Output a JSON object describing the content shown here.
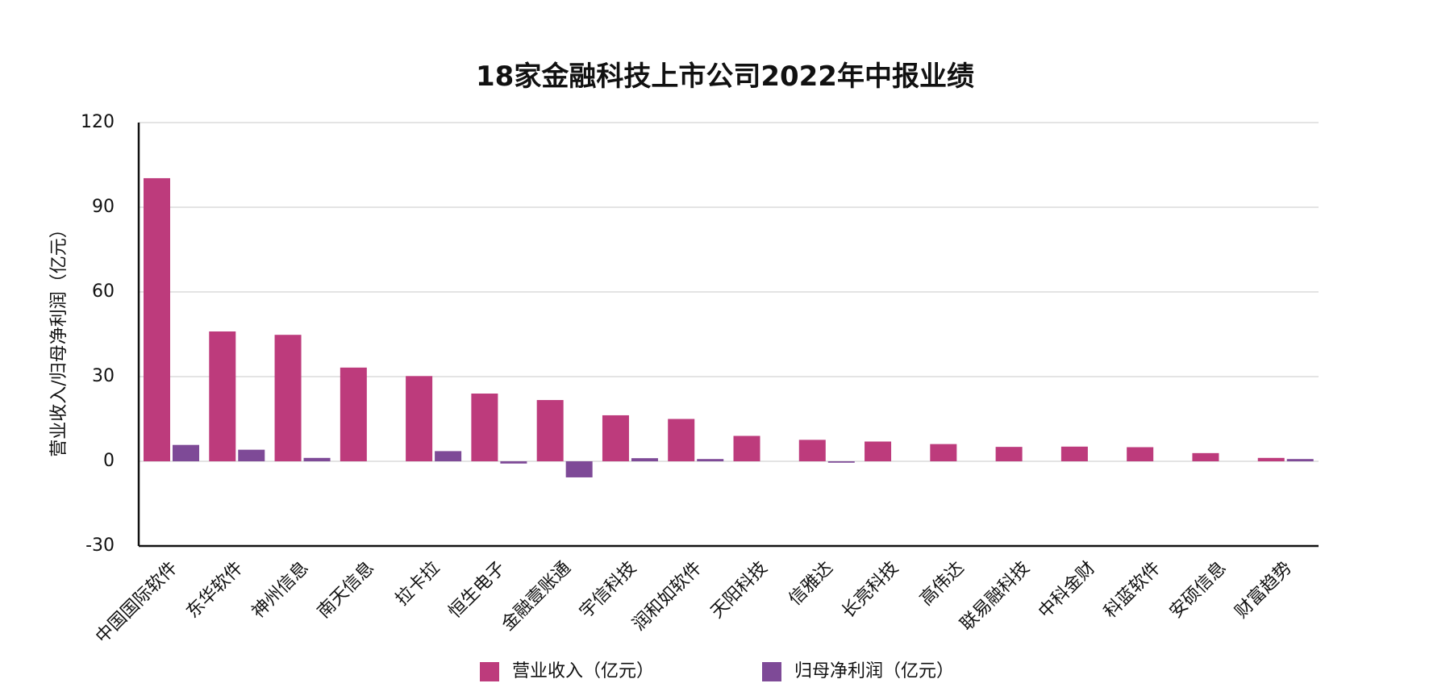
{
  "chart_data": {
    "type": "bar",
    "title": "18家金融科技上市公司2022年中报业绩",
    "xlabel": "",
    "ylabel": "营业收入/归母净利润（亿元）",
    "ylim": [
      -30,
      120
    ],
    "yticks": [
      -30,
      0,
      30,
      60,
      90,
      120
    ],
    "grid": true,
    "legend_position": "bottom",
    "categories": [
      "中国国际软件",
      "东华软件",
      "神州信息",
      "南天信息",
      "拉卡拉",
      "恒生电子",
      "金融壹账通",
      "宇信科技",
      "润和如软件",
      "天阳科技",
      "信雅达",
      "长亮科技",
      "高伟达",
      "联易融科技",
      "中科金财",
      "科蓝软件",
      "安硕信息",
      "财富趋势"
    ],
    "series": [
      {
        "name": "营业收入（亿元）",
        "color": "#bd3b7c",
        "values": [
          100.3,
          46.0,
          44.8,
          33.2,
          30.2,
          24.0,
          21.7,
          16.3,
          15.0,
          9.0,
          7.6,
          7.0,
          6.1,
          5.1,
          5.2,
          5.0,
          2.9,
          1.2
        ]
      },
      {
        "name": "归母净利润（亿元）",
        "color": "#7e4a97",
        "values": [
          5.8,
          4.1,
          1.2,
          0.0,
          3.6,
          -0.8,
          -5.7,
          1.1,
          0.8,
          0.0,
          -0.5,
          0.0,
          0.0,
          0.0,
          0.0,
          0.0,
          0.0,
          0.8
        ]
      }
    ]
  }
}
